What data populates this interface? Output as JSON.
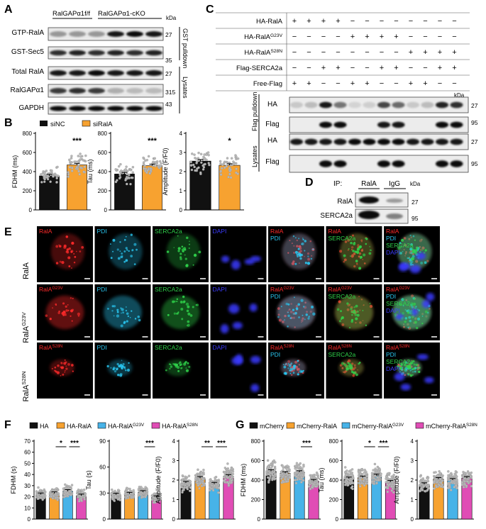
{
  "panels": {
    "A": {
      "letter": "A",
      "groups": [
        "RalGAPα1f/f",
        "RalGAPα1-cKO"
      ],
      "rows": [
        "GTP-RalA",
        "GST-Sec5",
        "Total RalA",
        "RalGAPα1",
        "GAPDH"
      ],
      "kda_header": "kDa",
      "kda": [
        "27",
        "35",
        "27",
        "315",
        "43"
      ],
      "side_labels": [
        "GST pulldown",
        "Lysates"
      ]
    },
    "B": {
      "letter": "B",
      "legend": [
        "siNC",
        "siRalA"
      ],
      "colors": {
        "siNC": "#111111",
        "siRalA": "#f7a230"
      },
      "charts": [
        {
          "ylabel": "FDHM (ms)",
          "ticks": [
            "0",
            "200",
            "400",
            "600",
            "800"
          ],
          "sig": "***"
        },
        {
          "ylabel": "Tau (ms)",
          "ticks": [
            "0",
            "200",
            "400",
            "600",
            "800"
          ],
          "sig": "***"
        },
        {
          "ylabel": "Amplitude (F/F0)",
          "ticks": [
            "0",
            "1",
            "2",
            "3",
            "4"
          ],
          "sig": "*"
        }
      ]
    },
    "C": {
      "letter": "C",
      "rows": [
        "HA-RalA",
        "HA-RalAG23V",
        "HA-RalAS28N",
        "Flag-SERCA2a",
        "Free-Flag"
      ],
      "signs": [
        [
          "+",
          "+",
          "+",
          "+",
          "−",
          "−",
          "−",
          "−",
          "−",
          "−",
          "−",
          "−"
        ],
        [
          "−",
          "−",
          "−",
          "−",
          "+",
          "+",
          "+",
          "+",
          "−",
          "−",
          "−",
          "−"
        ],
        [
          "−",
          "−",
          "−",
          "−",
          "−",
          "−",
          "−",
          "−",
          "+",
          "+",
          "+",
          "+"
        ],
        [
          "−",
          "−",
          "+",
          "+",
          "−",
          "−",
          "+",
          "+",
          "−",
          "−",
          "+",
          "+"
        ],
        [
          "+",
          "+",
          "−",
          "−",
          "+",
          "+",
          "−",
          "−",
          "+",
          "+",
          "−",
          "−"
        ]
      ],
      "blot_rows": [
        "HA",
        "Flag",
        "HA",
        "Flag"
      ],
      "kda_header": "kDa",
      "kda": [
        "27",
        "95",
        "27",
        "95"
      ],
      "side_labels": [
        "Flag pulldown",
        "Lysates"
      ]
    },
    "D": {
      "letter": "D",
      "ip_label": "IP:",
      "lanes": [
        "RalA",
        "IgG"
      ],
      "rows": [
        "RalA",
        "SERCA2a"
      ],
      "kda_header": "kDa",
      "kda": [
        "27",
        "95"
      ]
    },
    "E": {
      "letter": "E",
      "row_labels": [
        "RalA",
        "RalAG23V",
        "RalAS28N"
      ],
      "columns": [
        "RalA",
        "PDI",
        "SERCA2a",
        "DAPI"
      ],
      "merge_labels": [
        [
          "RalA",
          "PDI"
        ],
        [
          "RalA",
          "SERCA2a"
        ],
        [
          "RalA",
          "PDI",
          "SERCA2a",
          "DAPI"
        ]
      ],
      "colors": {
        "RalA": "#ff2a2a",
        "PDI": "#29c6f0",
        "SERCA2a": "#2fd24a",
        "DAPI": "#3b3bff"
      }
    },
    "F": {
      "letter": "F",
      "legend": [
        "HA",
        "HA-RalA",
        "HA-RalAG23V",
        "HA-RalAS28N"
      ],
      "colors": [
        "#111111",
        "#f7a230",
        "#47b3e8",
        "#e04db5"
      ],
      "charts": [
        {
          "ylabel": "FDHM (s)",
          "ticks": [
            "0",
            "10",
            "20",
            "30",
            "40",
            "50",
            "60",
            "70"
          ],
          "sig": [
            [
              "*",
              1,
              2
            ],
            [
              "***",
              2,
              3
            ]
          ]
        },
        {
          "ylabel": "Tau (s)",
          "ticks": [
            "0",
            "30",
            "60",
            "90"
          ],
          "sig": [
            [
              "***",
              2,
              3
            ]
          ]
        },
        {
          "ylabel": "Amplitude (F/F0)",
          "ticks": [
            "0",
            "1",
            "2",
            "3",
            "4"
          ],
          "sig": [
            [
              "**",
              1,
              2
            ],
            [
              "***",
              2,
              3
            ]
          ]
        }
      ]
    },
    "G": {
      "letter": "G",
      "legend": [
        "mCherry",
        "mCherry-RalA",
        "mCherry-RalAG23V",
        "mCherry-RalAS28N"
      ],
      "colors": [
        "#111111",
        "#f7a230",
        "#47b3e8",
        "#e04db5"
      ],
      "charts": [
        {
          "ylabel": "FDHM (ms)",
          "ticks": [
            "0",
            "200",
            "400",
            "600",
            "800"
          ],
          "sig": [
            [
              "***",
              2,
              3
            ]
          ]
        },
        {
          "ylabel": "Tau (ms)",
          "ticks": [
            "0",
            "200",
            "400",
            "600",
            "800"
          ],
          "sig": [
            [
              "*",
              1,
              2
            ],
            [
              "***",
              2,
              3
            ]
          ]
        },
        {
          "ylabel": "Amplitude (F/F0)",
          "ticks": [
            "0",
            "1",
            "2",
            "3",
            "4"
          ],
          "sig": []
        }
      ]
    }
  },
  "chart_data": [
    {
      "type": "bar",
      "panel": "B",
      "ylabel": "FDHM (ms)",
      "ylim": [
        0,
        800
      ],
      "categories": [
        "siNC",
        "siRalA"
      ],
      "values": [
        355,
        470
      ]
    },
    {
      "type": "bar",
      "panel": "B",
      "ylabel": "Tau (ms)",
      "ylim": [
        0,
        800
      ],
      "categories": [
        "siNC",
        "siRalA"
      ],
      "values": [
        375,
        462
      ]
    },
    {
      "type": "bar",
      "panel": "B",
      "ylabel": "Amplitude (F/F0)",
      "ylim": [
        0,
        4
      ],
      "categories": [
        "siNC",
        "siRalA"
      ],
      "values": [
        2.55,
        2.33
      ]
    },
    {
      "type": "bar",
      "panel": "F",
      "ylabel": "FDHM (s)",
      "ylim": [
        0,
        70
      ],
      "categories": [
        "HA",
        "HA-RalA",
        "HA-RalAG23V",
        "HA-RalAS28N"
      ],
      "values": [
        22,
        23,
        25,
        21
      ]
    },
    {
      "type": "bar",
      "panel": "F",
      "ylabel": "Tau (s)",
      "ylim": [
        0,
        90
      ],
      "categories": [
        "HA",
        "HA-RalA",
        "HA-RalAG23V",
        "HA-RalAS28N"
      ],
      "values": [
        28,
        29,
        31,
        25
      ]
    },
    {
      "type": "bar",
      "panel": "F",
      "ylabel": "Amplitude (F/F0)",
      "ylim": [
        0,
        4
      ],
      "categories": [
        "HA",
        "HA-RalA",
        "HA-RalAG23V",
        "HA-RalAS28N"
      ],
      "values": [
        1.85,
        2.1,
        1.8,
        2.2
      ]
    },
    {
      "type": "bar",
      "panel": "G",
      "ylabel": "FDHM (ms)",
      "ylim": [
        0,
        800
      ],
      "categories": [
        "mCherry",
        "mCherry-RalA",
        "mCherry-RalAG23V",
        "mCherry-RalAS28N"
      ],
      "values": [
        490,
        470,
        480,
        390
      ]
    },
    {
      "type": "bar",
      "panel": "G",
      "ylabel": "Tau (ms)",
      "ylim": [
        0,
        800
      ],
      "categories": [
        "mCherry",
        "mCherry-RalA",
        "mCherry-RalAG23V",
        "mCherry-RalAS28N"
      ],
      "values": [
        415,
        425,
        445,
        380
      ]
    },
    {
      "type": "bar",
      "panel": "G",
      "ylabel": "Amplitude (F/F0)",
      "ylim": [
        0,
        4
      ],
      "categories": [
        "mCherry",
        "mCherry-RalA",
        "mCherry-RalAG23V",
        "mCherry-RalAS28N"
      ],
      "values": [
        1.78,
        2.05,
        2.0,
        2.1
      ]
    }
  ]
}
